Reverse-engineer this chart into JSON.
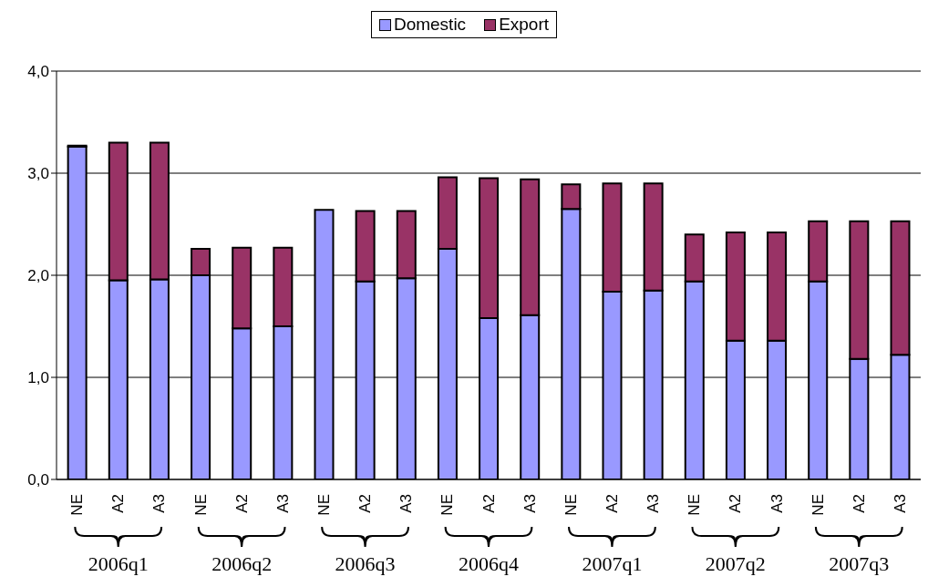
{
  "chart_data": {
    "type": "bar",
    "stacked": true,
    "categories": [
      "NE",
      "A2",
      "A3",
      "NE",
      "A2",
      "A3",
      "NE",
      "A2",
      "A3",
      "NE",
      "A2",
      "A3",
      "NE",
      "A2",
      "A3",
      "NE",
      "A2",
      "A3",
      "NE",
      "A2",
      "A3"
    ],
    "annotations": [
      "2006q1",
      "2006q2",
      "2006q3",
      "2006q4",
      "2007q1",
      "2007q2",
      "2007q3"
    ],
    "series": [
      {
        "name": "Domestic",
        "color": "#9999ff",
        "values": [
          3.26,
          1.95,
          1.96,
          2.0,
          1.48,
          1.5,
          2.64,
          1.94,
          1.97,
          2.26,
          1.58,
          1.61,
          2.65,
          1.84,
          1.85,
          1.94,
          1.36,
          1.36,
          1.94,
          1.18,
          1.22
        ]
      },
      {
        "name": "Export",
        "color": "#993366",
        "values": [
          0.01,
          1.35,
          1.34,
          0.26,
          0.79,
          0.77,
          0,
          0.69,
          0.66,
          0.7,
          1.37,
          1.33,
          0.24,
          1.06,
          1.05,
          0.46,
          1.06,
          1.06,
          0.59,
          1.35,
          1.31
        ]
      }
    ],
    "ylim": [
      0,
      4
    ],
    "yticks": [
      {
        "value": 0,
        "label": "0,0"
      },
      {
        "value": 1,
        "label": "1,0"
      },
      {
        "value": 2,
        "label": "2,0"
      },
      {
        "value": 3,
        "label": "3,0"
      },
      {
        "value": 4,
        "label": "4,0"
      }
    ],
    "grid": "y",
    "legend": "top"
  }
}
